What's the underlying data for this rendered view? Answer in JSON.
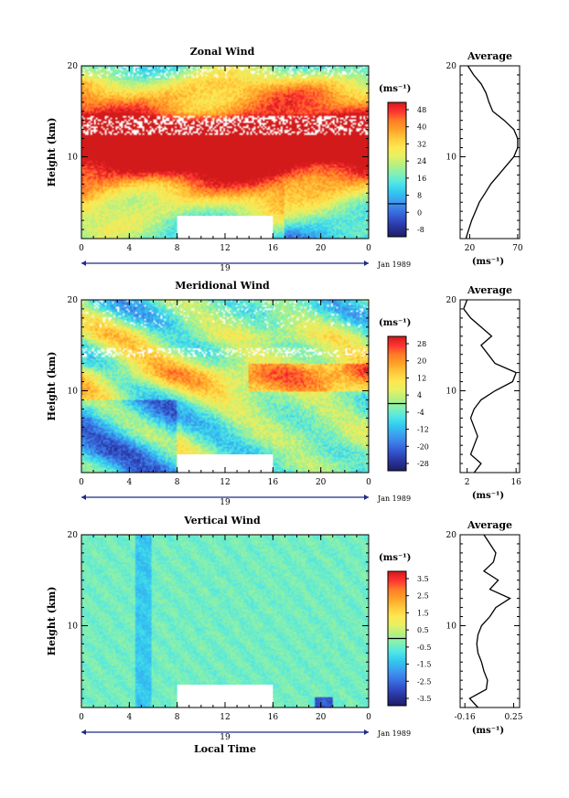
{
  "chart_data": [
    {
      "type": "heatmap",
      "title": "Zonal Wind",
      "ylabel": "Height (km)",
      "y_ticks": [
        "20",
        "10"
      ],
      "ylim": [
        1,
        20
      ],
      "x_ticks": [
        "0",
        "4",
        "8",
        "12",
        "16",
        "20",
        "0"
      ],
      "xlim": [
        0,
        24
      ],
      "date_mid": "19",
      "date_right": "Jan 1989",
      "colorbar": {
        "unit": "(ms⁻¹)",
        "levels": [
          "48",
          "40",
          "32",
          "24",
          "16",
          "8",
          "0",
          "-8"
        ],
        "range": [
          -12,
          52
        ]
      },
      "data_gap": {
        "x": [
          8,
          16
        ],
        "y": [
          1,
          3.5
        ]
      },
      "profile": {
        "title": "Average",
        "x_ticks": [
          "20",
          "70"
        ],
        "xlim": [
          10,
          72
        ],
        "xlabel": "(ms⁻¹)",
        "y_ticks": [
          "20",
          "10"
        ],
        "height": [
          1,
          2,
          3,
          4,
          5,
          6,
          7,
          8,
          9,
          10,
          11,
          12,
          13,
          14,
          15,
          16,
          17,
          18,
          19,
          20
        ],
        "values": [
          16,
          19,
          22,
          26,
          30,
          36,
          42,
          50,
          58,
          66,
          70,
          70,
          66,
          56,
          44,
          40,
          37,
          32,
          24,
          18
        ]
      }
    },
    {
      "type": "heatmap",
      "title": "Meridional Wind",
      "ylabel": "Height (km)",
      "y_ticks": [
        "20",
        "10"
      ],
      "ylim": [
        1,
        20
      ],
      "x_ticks": [
        "0",
        "4",
        "8",
        "12",
        "16",
        "20",
        "0"
      ],
      "xlim": [
        0,
        24
      ],
      "date_mid": "19",
      "date_right": "Jan 1989",
      "colorbar": {
        "unit": "(ms⁻¹)",
        "levels": [
          "28",
          "20",
          "12",
          "4",
          "-4",
          "-12",
          "-20",
          "-28"
        ],
        "range": [
          -30,
          32
        ]
      },
      "data_gap": {
        "x": [
          8,
          16
        ],
        "y": [
          1,
          3
        ]
      },
      "profile": {
        "title": "Average",
        "x_ticks": [
          "2",
          "16"
        ],
        "xlim": [
          0,
          17
        ],
        "xlabel": "(ms⁻¹)",
        "y_ticks": [
          "20",
          "10"
        ],
        "height": [
          1,
          2,
          3,
          4,
          5,
          6,
          7,
          8,
          9,
          10,
          11,
          12,
          13,
          14,
          15,
          16,
          17,
          18,
          19,
          20
        ],
        "values": [
          4,
          6,
          3,
          4,
          5,
          4,
          3,
          4,
          6,
          10,
          15,
          16,
          10,
          8,
          6,
          9,
          6,
          3,
          1,
          2
        ]
      }
    },
    {
      "type": "heatmap",
      "title": "Vertical Wind",
      "ylabel": "Height (km)",
      "y_ticks": [
        "20",
        "10"
      ],
      "ylim": [
        1,
        20
      ],
      "x_ticks": [
        "0",
        "4",
        "8",
        "12",
        "16",
        "20",
        "0"
      ],
      "xlim": [
        0,
        24
      ],
      "xlabel": "Local Time",
      "date_mid": "19",
      "date_right": "Jan 1989",
      "colorbar": {
        "unit": "(ms⁻¹)",
        "levels": [
          "3.5",
          "2.5",
          "1.5",
          "0.5",
          "-0.5",
          "-1.5",
          "-2.5",
          "-3.5"
        ],
        "range": [
          -4,
          4
        ]
      },
      "data_gap": {
        "x": [
          8,
          16
        ],
        "y": [
          1,
          3.5
        ]
      },
      "profile": {
        "title": "Average",
        "x_ticks": [
          "-0.16",
          "0.25"
        ],
        "xlim": [
          -0.2,
          0.3
        ],
        "xlabel": "(ms⁻¹)",
        "y_ticks": [
          "20",
          "10"
        ],
        "height": [
          1,
          2,
          3,
          4,
          5,
          6,
          7,
          8,
          9,
          10,
          11,
          12,
          13,
          14,
          15,
          16,
          17,
          18,
          19,
          20
        ],
        "values": [
          -0.05,
          -0.12,
          0.02,
          0.03,
          0.0,
          -0.02,
          -0.05,
          -0.06,
          -0.05,
          -0.02,
          0.05,
          0.1,
          0.22,
          0.05,
          0.12,
          0.0,
          0.08,
          0.1,
          0.05,
          0.0
        ]
      }
    }
  ]
}
